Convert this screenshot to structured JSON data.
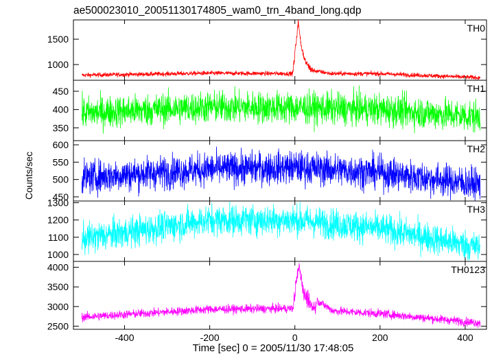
{
  "chart_data": {
    "type": "line",
    "title": "ae500023010_20051130174805_wam0_trn_4band_long.qdp",
    "xlabel": "Time [sec] 0 = 2005/11/30 17:48:05",
    "ylabel": "Counts/sec",
    "xlim": [
      -520,
      450
    ],
    "x_ticks": [
      -400,
      -200,
      0,
      200,
      400
    ],
    "x_range": [
      -500,
      435
    ],
    "grid": false,
    "panels": [
      {
        "name": "TH0",
        "color": "#ff0000",
        "ylim": [
          690,
          1880
        ],
        "yticks": [
          1000,
          1500
        ],
        "baseline_profile": [
          [
            -500,
            790
          ],
          [
            -200,
            830
          ],
          [
            0,
            820
          ],
          [
            200,
            820
          ],
          [
            435,
            740
          ]
        ],
        "noise": 22,
        "peak": {
          "x_start": -5,
          "x_peak": 8,
          "x_end": 45,
          "value": 1850,
          "post_decay": 60
        }
      },
      {
        "name": "TH1",
        "color": "#00ff00",
        "ylim": [
          315,
          480
        ],
        "yticks": [
          350,
          400,
          450
        ],
        "baseline_profile": [
          [
            -500,
            390
          ],
          [
            -200,
            407
          ],
          [
            0,
            405
          ],
          [
            200,
            400
          ],
          [
            435,
            380
          ]
        ],
        "noise": 22
      },
      {
        "name": "TH2",
        "color": "#0000ff",
        "ylim": [
          438,
          612
        ],
        "yticks": [
          450,
          500,
          550,
          600
        ],
        "baseline_profile": [
          [
            -500,
            505
          ],
          [
            -200,
            530
          ],
          [
            0,
            535
          ],
          [
            200,
            520
          ],
          [
            435,
            485
          ]
        ],
        "noise": 24
      },
      {
        "name": "TH3",
        "color": "#00ffff",
        "ylim": [
          960,
          1310
        ],
        "yticks": [
          1000,
          1100,
          1200,
          1300
        ],
        "baseline_profile": [
          [
            -500,
            1090
          ],
          [
            -200,
            1200
          ],
          [
            0,
            1200
          ],
          [
            200,
            1150
          ],
          [
            435,
            1040
          ]
        ],
        "noise": 45
      },
      {
        "name": "TH0123",
        "color": "#ff00ff",
        "ylim": [
          2420,
          4150
        ],
        "yticks": [
          2500,
          3000,
          3500,
          4000
        ],
        "baseline_profile": [
          [
            -500,
            2730
          ],
          [
            -200,
            2930
          ],
          [
            0,
            2950
          ],
          [
            200,
            2820
          ],
          [
            435,
            2580
          ]
        ],
        "noise": 55,
        "peak": {
          "x_start": -5,
          "x_peak": 10,
          "x_end": 50,
          "value": 4100,
          "post_decay": 250
        }
      }
    ]
  }
}
